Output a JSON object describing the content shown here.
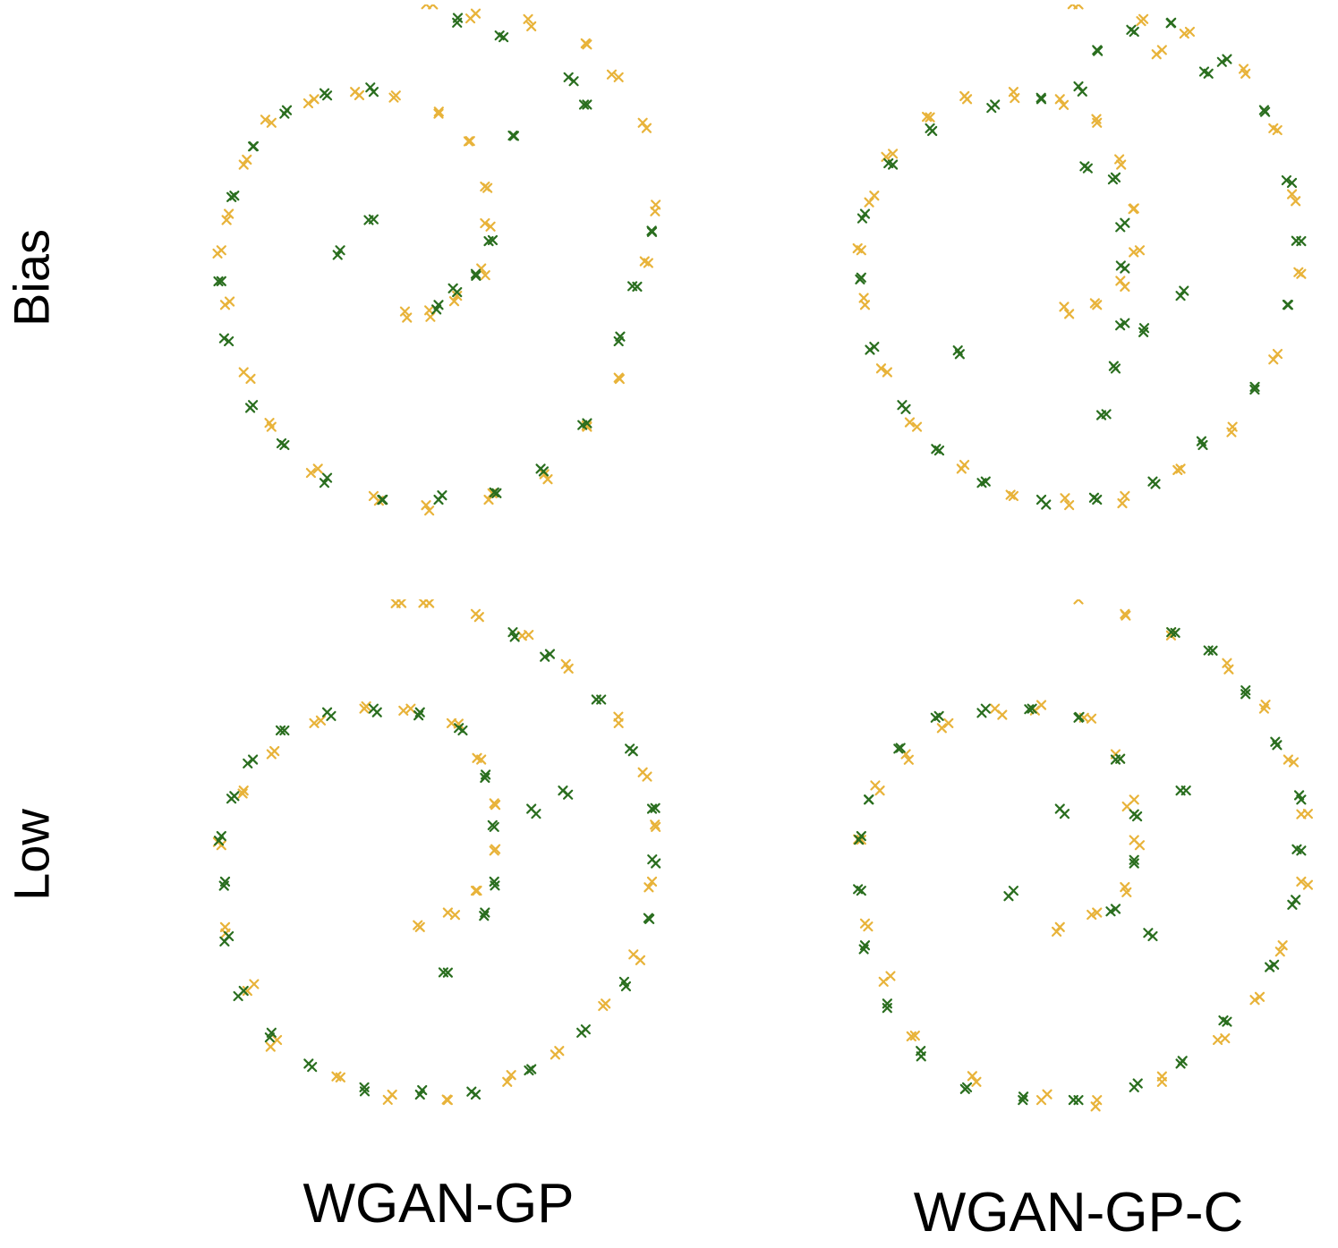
{
  "colors": {
    "real": "#e8b33a",
    "generated": "#2a6e1f"
  },
  "row_labels": [
    "Bias",
    "Low"
  ],
  "col_labels": [
    "WGAN-GP",
    "WGAN-GP-C"
  ],
  "chart_data": [
    {
      "type": "scatter",
      "row": "Bias",
      "column": "WGAN-GP",
      "marker": "x",
      "xlim": [
        -1.3,
        1.4
      ],
      "ylim": [
        -1.25,
        1.6
      ],
      "series": [
        {
          "points": [
            [
              -1.12,
              0.25
            ],
            [
              -1.08,
              0.45
            ],
            [
              -1.0,
              0.72
            ],
            [
              -0.85,
              0.95
            ],
            [
              -0.62,
              1.08
            ],
            [
              -0.4,
              1.12
            ],
            [
              -0.18,
              1.1
            ],
            [
              0.05,
              1.0
            ],
            [
              0.22,
              0.85
            ],
            [
              0.3,
              0.6
            ],
            [
              0.33,
              0.38
            ],
            [
              0.28,
              0.15
            ],
            [
              0.15,
              0.0
            ],
            [
              0.0,
              -0.08
            ],
            [
              -0.12,
              -0.12
            ],
            [
              -1.1,
              -0.05
            ],
            [
              -1.0,
              -0.42
            ],
            [
              -0.85,
              -0.72
            ],
            [
              -0.6,
              -0.95
            ],
            [
              -0.3,
              -1.1
            ],
            [
              0.0,
              -1.18
            ],
            [
              0.32,
              -1.12
            ],
            [
              0.62,
              -0.98
            ],
            [
              0.85,
              -0.72
            ],
            [
              1.02,
              -0.45
            ],
            [
              1.18,
              0.18
            ],
            [
              1.22,
              0.5
            ],
            [
              1.15,
              0.95
            ],
            [
              1.02,
              1.2
            ],
            [
              0.85,
              1.38
            ],
            [
              0.55,
              1.48
            ],
            [
              0.25,
              1.55
            ],
            [
              0.02,
              1.6
            ]
          ],
          "jitter": 0.04,
          "copies": 2,
          "seed": 11
        },
        {
          "points": [
            [
              -1.05,
              0.55
            ],
            [
              -0.95,
              0.82
            ],
            [
              -0.78,
              1.0
            ],
            [
              -0.55,
              1.1
            ],
            [
              -0.3,
              1.12
            ],
            [
              -1.12,
              0.08
            ],
            [
              -1.08,
              -0.25
            ],
            [
              -0.95,
              -0.6
            ],
            [
              -0.78,
              -0.82
            ],
            [
              -0.55,
              -1.0
            ],
            [
              -0.25,
              -1.12
            ],
            [
              0.05,
              -1.12
            ],
            [
              0.35,
              -1.08
            ],
            [
              0.6,
              -0.95
            ],
            [
              0.85,
              -0.7
            ],
            [
              0.32,
              0.3
            ],
            [
              0.25,
              0.12
            ],
            [
              0.15,
              0.02
            ],
            [
              0.05,
              -0.05
            ],
            [
              1.02,
              -0.25
            ],
            [
              1.12,
              0.05
            ],
            [
              1.2,
              0.35
            ],
            [
              0.75,
              1.2
            ],
            [
              0.85,
              1.05
            ],
            [
              0.4,
              1.42
            ],
            [
              0.15,
              1.5
            ],
            [
              -0.3,
              0.42
            ],
            [
              -0.48,
              0.25
            ],
            [
              0.45,
              0.88
            ]
          ],
          "jitter": 0.03,
          "copies": 2,
          "seed": 23
        }
      ]
    },
    {
      "type": "scatter",
      "row": "Bias",
      "column": "WGAN-GP-C",
      "marker": "x",
      "xlim": [
        -1.3,
        1.4
      ],
      "ylim": [
        -1.25,
        1.6
      ],
      "series": [
        {
          "points": [
            [
              -1.12,
              0.25
            ],
            [
              -1.05,
              0.55
            ],
            [
              -0.95,
              0.78
            ],
            [
              -0.75,
              0.98
            ],
            [
              -0.55,
              1.08
            ],
            [
              -0.3,
              1.12
            ],
            [
              -0.05,
              1.08
            ],
            [
              0.15,
              0.95
            ],
            [
              0.28,
              0.72
            ],
            [
              0.35,
              0.48
            ],
            [
              0.38,
              0.25
            ],
            [
              0.3,
              0.05
            ],
            [
              0.15,
              -0.05
            ],
            [
              0.0,
              -0.1
            ],
            [
              -1.1,
              -0.05
            ],
            [
              -0.98,
              -0.42
            ],
            [
              -0.82,
              -0.72
            ],
            [
              -0.58,
              -0.95
            ],
            [
              -0.3,
              -1.1
            ],
            [
              0.0,
              -1.15
            ],
            [
              0.3,
              -1.1
            ],
            [
              0.6,
              -0.95
            ],
            [
              0.88,
              -0.72
            ],
            [
              1.1,
              -0.35
            ],
            [
              1.25,
              0.12
            ],
            [
              1.22,
              0.52
            ],
            [
              1.1,
              0.92
            ],
            [
              0.95,
              1.22
            ],
            [
              0.65,
              1.45
            ],
            [
              0.4,
              1.52
            ],
            [
              0.05,
              1.6
            ],
            [
              0.5,
              1.35
            ]
          ],
          "jitter": 0.04,
          "copies": 2,
          "seed": 37
        },
        {
          "points": [
            [
              -1.1,
              0.45
            ],
            [
              -0.95,
              0.72
            ],
            [
              -0.75,
              0.92
            ],
            [
              -0.4,
              1.05
            ],
            [
              -0.15,
              1.08
            ],
            [
              0.05,
              1.15
            ],
            [
              -1.12,
              0.1
            ],
            [
              -1.05,
              -0.28
            ],
            [
              -0.9,
              -0.6
            ],
            [
              -0.7,
              -0.85
            ],
            [
              -0.45,
              -1.02
            ],
            [
              -0.15,
              -1.12
            ],
            [
              0.15,
              -1.12
            ],
            [
              0.45,
              -1.02
            ],
            [
              0.72,
              -0.82
            ],
            [
              1.0,
              -0.5
            ],
            [
              1.18,
              -0.05
            ],
            [
              1.25,
              0.3
            ],
            [
              1.2,
              0.62
            ],
            [
              1.05,
              1.02
            ],
            [
              0.85,
              1.3
            ],
            [
              0.25,
              0.65
            ],
            [
              0.3,
              0.4
            ],
            [
              0.3,
              0.15
            ],
            [
              0.3,
              -0.15
            ],
            [
              0.25,
              -0.4
            ],
            [
              0.4,
              -0.2
            ],
            [
              0.2,
              -0.65
            ],
            [
              0.15,
              1.35
            ],
            [
              0.35,
              1.45
            ],
            [
              0.55,
              1.5
            ],
            [
              0.75,
              1.22
            ],
            [
              -0.6,
              -0.3
            ],
            [
              0.6,
              0.0
            ],
            [
              0.1,
              0.7
            ]
          ],
          "jitter": 0.03,
          "copies": 2,
          "seed": 53
        }
      ]
    },
    {
      "type": "scatter",
      "row": "Low",
      "column": "WGAN-GP",
      "marker": "x",
      "xlim": [
        -1.3,
        1.4
      ],
      "ylim": [
        -1.25,
        1.6
      ],
      "series": [
        {
          "points": [
            [
              -1.12,
              0.25
            ],
            [
              -1.0,
              0.55
            ],
            [
              -0.85,
              0.75
            ],
            [
              -0.62,
              0.92
            ],
            [
              -0.35,
              1.0
            ],
            [
              -0.1,
              1.0
            ],
            [
              0.12,
              0.92
            ],
            [
              0.28,
              0.72
            ],
            [
              0.35,
              0.48
            ],
            [
              0.35,
              0.22
            ],
            [
              0.25,
              0.0
            ],
            [
              0.1,
              -0.12
            ],
            [
              -0.05,
              -0.2
            ],
            [
              -1.1,
              -0.2
            ],
            [
              -0.98,
              -0.55
            ],
            [
              -0.82,
              -0.82
            ],
            [
              -0.5,
              -1.02
            ],
            [
              -0.2,
              -1.12
            ],
            [
              0.1,
              -1.15
            ],
            [
              0.42,
              -1.05
            ],
            [
              0.7,
              -0.88
            ],
            [
              0.95,
              -0.62
            ],
            [
              1.1,
              -0.35
            ],
            [
              1.2,
              0.05
            ],
            [
              1.22,
              0.35
            ],
            [
              1.15,
              0.65
            ],
            [
              1.02,
              0.92
            ],
            [
              0.75,
              1.22
            ],
            [
              0.5,
              1.4
            ],
            [
              0.25,
              1.52
            ],
            [
              0.0,
              1.58
            ],
            [
              -0.15,
              1.58
            ]
          ],
          "jitter": 0.04,
          "copies": 2,
          "seed": 71
        },
        {
          "points": [
            [
              -1.12,
              0.3
            ],
            [
              -1.05,
              0.52
            ],
            [
              -0.95,
              0.72
            ],
            [
              -0.78,
              0.88
            ],
            [
              -0.55,
              0.98
            ],
            [
              -0.3,
              1.0
            ],
            [
              -0.05,
              0.98
            ],
            [
              0.18,
              0.88
            ],
            [
              0.3,
              0.62
            ],
            [
              0.35,
              0.35
            ],
            [
              0.35,
              0.05
            ],
            [
              0.3,
              -0.12
            ],
            [
              -1.1,
              0.05
            ],
            [
              -1.08,
              -0.25
            ],
            [
              -1.0,
              -0.55
            ],
            [
              -0.85,
              -0.78
            ],
            [
              -0.65,
              -0.95
            ],
            [
              -0.35,
              -1.08
            ],
            [
              -0.05,
              -1.12
            ],
            [
              0.25,
              -1.12
            ],
            [
              0.55,
              -0.98
            ],
            [
              0.82,
              -0.78
            ],
            [
              1.05,
              -0.5
            ],
            [
              1.18,
              -0.15
            ],
            [
              1.22,
              0.15
            ],
            [
              1.2,
              0.45
            ],
            [
              1.08,
              0.78
            ],
            [
              0.9,
              1.05
            ],
            [
              0.65,
              1.3
            ],
            [
              0.45,
              1.42
            ],
            [
              0.55,
              0.45
            ],
            [
              0.1,
              -0.45
            ],
            [
              0.72,
              0.55
            ]
          ],
          "jitter": 0.03,
          "copies": 2,
          "seed": 97
        }
      ]
    },
    {
      "type": "scatter",
      "row": "Low",
      "column": "WGAN-GP-C",
      "marker": "x",
      "xlim": [
        -1.3,
        1.4
      ],
      "ylim": [
        -1.25,
        1.6
      ],
      "series": [
        {
          "points": [
            [
              -1.12,
              0.28
            ],
            [
              -1.02,
              0.55
            ],
            [
              -0.88,
              0.75
            ],
            [
              -0.65,
              0.92
            ],
            [
              -0.4,
              1.0
            ],
            [
              -0.15,
              1.02
            ],
            [
              0.08,
              0.95
            ],
            [
              0.25,
              0.75
            ],
            [
              0.35,
              0.5
            ],
            [
              0.38,
              0.25
            ],
            [
              0.3,
              0.02
            ],
            [
              0.15,
              -0.12
            ],
            [
              -0.05,
              -0.2
            ],
            [
              -1.1,
              -0.18
            ],
            [
              -1.0,
              -0.5
            ],
            [
              -0.85,
              -0.8
            ],
            [
              -0.5,
              -1.05
            ],
            [
              -0.15,
              -1.15
            ],
            [
              0.15,
              -1.15
            ],
            [
              0.5,
              -1.02
            ],
            [
              0.8,
              -0.82
            ],
            [
              1.0,
              -0.6
            ],
            [
              1.15,
              -0.3
            ],
            [
              1.25,
              0.05
            ],
            [
              1.25,
              0.42
            ],
            [
              1.18,
              0.72
            ],
            [
              1.05,
              1.0
            ],
            [
              0.85,
              1.25
            ],
            [
              0.55,
              1.42
            ],
            [
              0.3,
              1.52
            ],
            [
              0.05,
              1.6
            ]
          ],
          "jitter": 0.04,
          "copies": 2,
          "seed": 113
        },
        {
          "points": [
            [
              -1.12,
              0.3
            ],
            [
              -1.08,
              0.5
            ],
            [
              -0.92,
              0.78
            ],
            [
              -0.72,
              0.95
            ],
            [
              -0.45,
              1.0
            ],
            [
              -0.2,
              1.0
            ],
            [
              0.05,
              0.95
            ],
            [
              0.25,
              0.72
            ],
            [
              0.35,
              0.42
            ],
            [
              0.35,
              0.15
            ],
            [
              0.25,
              -0.1
            ],
            [
              -1.12,
              0.0
            ],
            [
              -1.1,
              -0.3
            ],
            [
              -0.98,
              -0.62
            ],
            [
              -0.8,
              -0.88
            ],
            [
              -0.55,
              -1.08
            ],
            [
              -0.25,
              -1.15
            ],
            [
              0.05,
              -1.15
            ],
            [
              0.35,
              -1.08
            ],
            [
              0.6,
              -0.95
            ],
            [
              0.85,
              -0.72
            ],
            [
              1.08,
              -0.42
            ],
            [
              1.22,
              -0.05
            ],
            [
              1.25,
              0.22
            ],
            [
              1.25,
              0.5
            ],
            [
              1.12,
              0.8
            ],
            [
              0.95,
              1.08
            ],
            [
              0.75,
              1.32
            ],
            [
              0.55,
              1.42
            ],
            [
              -0.3,
              0.0
            ],
            [
              -0.05,
              0.45
            ],
            [
              0.45,
              -0.25
            ],
            [
              0.6,
              0.55
            ]
          ],
          "jitter": 0.03,
          "copies": 2,
          "seed": 131
        }
      ]
    }
  ]
}
